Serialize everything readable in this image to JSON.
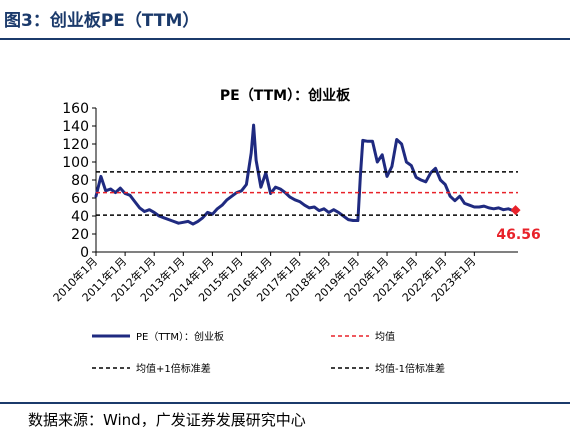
{
  "figure": {
    "label": "图3：创业板PE（TTM）",
    "source": "数据来源：Wind，广发证券发展研究中心"
  },
  "colors": {
    "pe": "#1f2a80",
    "mean": "#e8222a",
    "band": "#000000",
    "marker": "#e8222a",
    "label": "#e8222a",
    "title_bar": "#1b3a6b"
  },
  "chart_data": {
    "type": "line",
    "title": "PE（TTM）：创业板",
    "xlabel": "",
    "ylabel": "",
    "ylim": [
      0,
      160
    ],
    "yticks": [
      0,
      20,
      40,
      60,
      80,
      100,
      120,
      140,
      160
    ],
    "xlim": [
      "2010-01",
      "2024-07"
    ],
    "xticks": [
      "2010年1月",
      "2011年1月",
      "2012年1月",
      "2013年1月",
      "2014年1月",
      "2015年1月",
      "2016年1月",
      "2017年1月",
      "2018年1月",
      "2019年1月",
      "2020年1月",
      "2021年1月",
      "2022年1月",
      "2023年1月"
    ],
    "grid": false,
    "legend_position": "bottom",
    "series": [
      {
        "name": "PE（TTM）：创业板",
        "style": "solid",
        "x": [
          "2010-01",
          "2010-03",
          "2010-05",
          "2010-07",
          "2010-09",
          "2010-11",
          "2011-01",
          "2011-03",
          "2011-05",
          "2011-07",
          "2011-09",
          "2011-11",
          "2012-01",
          "2012-03",
          "2012-05",
          "2012-07",
          "2012-09",
          "2012-11",
          "2013-01",
          "2013-03",
          "2013-05",
          "2013-07",
          "2013-09",
          "2013-11",
          "2014-01",
          "2014-03",
          "2014-05",
          "2014-07",
          "2014-09",
          "2014-11",
          "2015-01",
          "2015-03",
          "2015-05",
          "2015-06",
          "2015-07",
          "2015-09",
          "2015-11",
          "2016-01",
          "2016-03",
          "2016-05",
          "2016-07",
          "2016-09",
          "2016-11",
          "2017-01",
          "2017-03",
          "2017-05",
          "2017-07",
          "2017-09",
          "2017-11",
          "2018-01",
          "2018-03",
          "2018-05",
          "2018-07",
          "2018-09",
          "2018-11",
          "2019-01",
          "2019-02",
          "2019-03",
          "2019-05",
          "2019-07",
          "2019-09",
          "2019-11",
          "2020-01",
          "2020-03",
          "2020-05",
          "2020-07",
          "2020-09",
          "2020-11",
          "2021-01",
          "2021-03",
          "2021-05",
          "2021-07",
          "2021-09",
          "2021-11",
          "2022-01",
          "2022-03",
          "2022-05",
          "2022-07",
          "2022-09",
          "2022-11",
          "2023-01",
          "2023-03",
          "2023-05",
          "2023-07",
          "2023-09",
          "2023-11",
          "2024-01",
          "2024-03",
          "2024-05",
          "2024-06"
        ],
        "values": [
          62,
          84,
          68,
          70,
          66,
          71,
          65,
          63,
          56,
          49,
          45,
          47,
          44,
          40,
          38,
          36,
          34,
          32,
          33,
          34,
          31,
          34,
          38,
          44,
          42,
          48,
          52,
          58,
          62,
          66,
          68,
          75,
          110,
          141,
          102,
          72,
          88,
          65,
          72,
          70,
          66,
          61,
          58,
          56,
          52,
          49,
          50,
          46,
          48,
          44,
          47,
          44,
          40,
          36,
          35,
          35,
          85,
          124,
          123,
          123,
          100,
          108,
          84,
          95,
          125,
          120,
          100,
          96,
          83,
          80,
          78,
          88,
          93,
          80,
          75,
          62,
          57,
          62,
          54,
          52,
          50,
          50,
          51,
          49,
          48,
          49,
          47,
          48,
          46,
          46.56
        ]
      },
      {
        "name": "均值",
        "style": "dashed",
        "constant": 66
      },
      {
        "name": "均值+1倍标准差",
        "style": "dashed",
        "constant": 89
      },
      {
        "name": "均值-1倍标准差",
        "style": "dashed",
        "constant": 41
      }
    ],
    "annotations": [
      {
        "text": "46.56",
        "x": "2024-06",
        "y": 46.56
      }
    ]
  }
}
